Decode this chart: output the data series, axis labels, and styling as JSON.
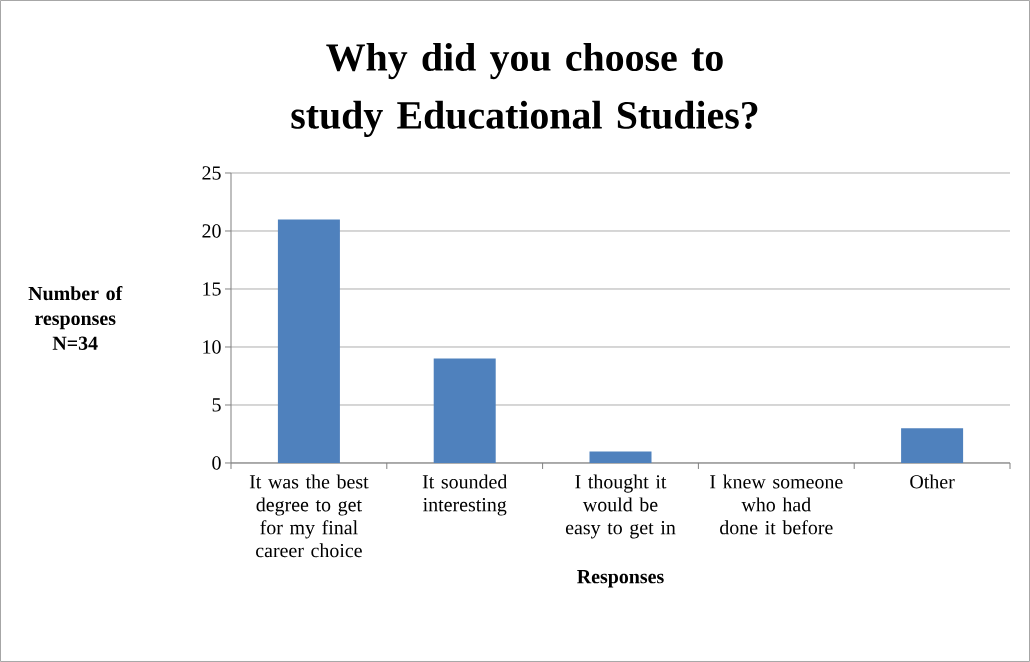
{
  "chart_data": {
    "type": "bar",
    "title": "Why did you choose to study Educational Studies?",
    "xlabel": "Responses",
    "ylabel": "Number of responses N=34",
    "categories": [
      "It was the best degree to get for my final career choice",
      "It sounded interesting",
      "I thought it would be easy to get in",
      "I knew someone who had done it before",
      "Other"
    ],
    "values": [
      21,
      9,
      1,
      0,
      3
    ],
    "color": "#4f81bd",
    "ylim": [
      0,
      25
    ],
    "yticks": [
      0,
      5,
      10,
      15,
      20,
      25
    ],
    "grid": "y"
  }
}
